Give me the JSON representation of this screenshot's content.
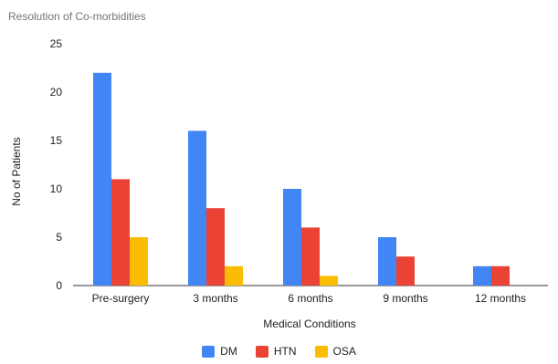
{
  "chart_data": {
    "type": "bar",
    "title": "Resolution of Co-morbidities",
    "xlabel": "Medical Conditions",
    "ylabel": "No of Patients",
    "categories": [
      "Pre-surgery",
      "3 months",
      "6 months",
      "9 months",
      "12 months"
    ],
    "series": [
      {
        "name": "DM",
        "values": [
          22,
          16,
          10,
          5,
          2
        ],
        "color": "#4285f4"
      },
      {
        "name": "HTN",
        "values": [
          11,
          8,
          6,
          3,
          2
        ],
        "color": "#ea4335"
      },
      {
        "name": "OSA",
        "values": [
          5,
          2,
          1,
          0,
          0
        ],
        "color": "#fbbc04"
      }
    ],
    "ylim": [
      0,
      25
    ],
    "yticks": [
      0,
      5,
      10,
      15,
      20,
      25
    ],
    "grid": false,
    "legend_position": "bottom"
  }
}
